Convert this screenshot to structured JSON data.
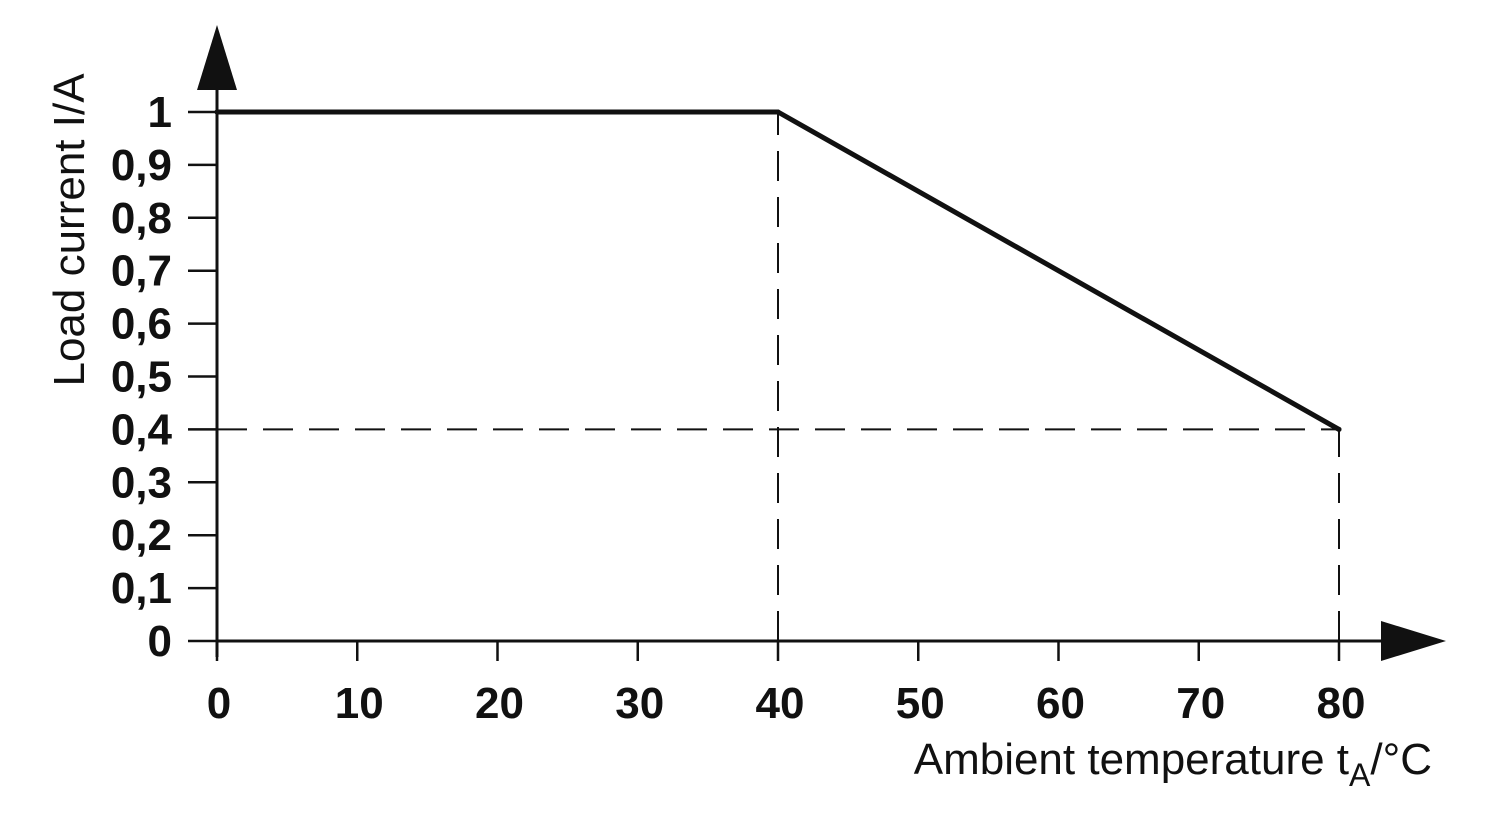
{
  "chart_data": {
    "type": "line",
    "title": "",
    "xlabel": {
      "main": "Ambient temperature t",
      "sub": "A",
      "tail": "/°C"
    },
    "ylabel": "Load current I/A",
    "xlim": [
      0,
      80
    ],
    "ylim": [
      0,
      1
    ],
    "xticks": [
      0,
      10,
      20,
      30,
      40,
      50,
      60,
      70,
      80
    ],
    "yticks": [
      0,
      0.1,
      0.2,
      0.3,
      0.4,
      0.5,
      0.6,
      0.7,
      0.8,
      0.9,
      1
    ],
    "xtick_labels": [
      "0",
      "10",
      "20",
      "30",
      "40",
      "50",
      "60",
      "70",
      "80"
    ],
    "ytick_labels": [
      "0",
      "0,1",
      "0,2",
      "0,3",
      "0,4",
      "0,5",
      "0,6",
      "0,7",
      "0,8",
      "0,9",
      "1"
    ],
    "grid": false,
    "colors": {
      "line": "#111111",
      "axis": "#111111",
      "guide": "#111111"
    },
    "series": [
      {
        "x": [
          0,
          40,
          80
        ],
        "y": [
          1,
          1,
          0.4
        ]
      }
    ],
    "reference_lines": [
      {
        "kind": "vertical",
        "x": 40,
        "from_y": 0,
        "to_y": 1
      },
      {
        "kind": "vertical",
        "x": 80,
        "from_y": 0,
        "to_y": 0.4
      },
      {
        "kind": "horizontal",
        "y": 0.4,
        "from_x": 0,
        "to_x": 80
      }
    ]
  }
}
